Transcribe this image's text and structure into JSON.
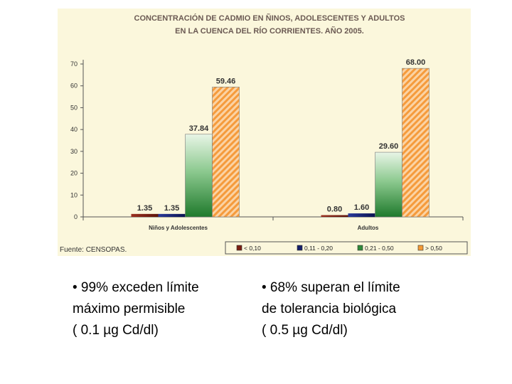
{
  "chart_data": {
    "type": "bar",
    "title_lines": [
      "CONCENTRACIÓN DE CADMIO EN ÑINOS, ADOLESCENTES Y ADULTOS",
      "EN LA CUENCA DEL RÍO CORRIENTES. AÑO 2005."
    ],
    "categories": [
      "Niños y Adolescentes",
      "Adultos"
    ],
    "series": [
      {
        "name": "< 0,10",
        "values": [
          1.35,
          0.8
        ],
        "labels": [
          "1.35",
          "0.80"
        ],
        "color": "#7b1f12"
      },
      {
        "name": "0,11 - 0,20",
        "values": [
          1.35,
          1.6
        ],
        "labels": [
          "1.35",
          "1.60"
        ],
        "color": "#15206b"
      },
      {
        "name": "0,21 - 0,50",
        "values": [
          37.84,
          29.6
        ],
        "labels": [
          "37.84",
          "29.60"
        ],
        "color": "#2f8a3a"
      },
      {
        "name": "> 0,50",
        "values": [
          59.46,
          68.0
        ],
        "labels": [
          "59.46",
          "68.00"
        ],
        "color": "#f39a35"
      }
    ],
    "yticks": [
      "0",
      "10",
      "20",
      "30",
      "40",
      "50",
      "60",
      "70"
    ],
    "ylim": [
      0,
      70
    ],
    "source": "Fuente: CENSOPAS.",
    "legend_position": "bottom-right"
  },
  "notes": {
    "left": [
      "• 99% exceden  límite",
      "máximo permisible",
      "( 0.1 µg Cd/dl)"
    ],
    "right": [
      "• 68% superan el límite",
      "de tolerancia biológica",
      "( 0.5 µg Cd/dl)"
    ]
  }
}
